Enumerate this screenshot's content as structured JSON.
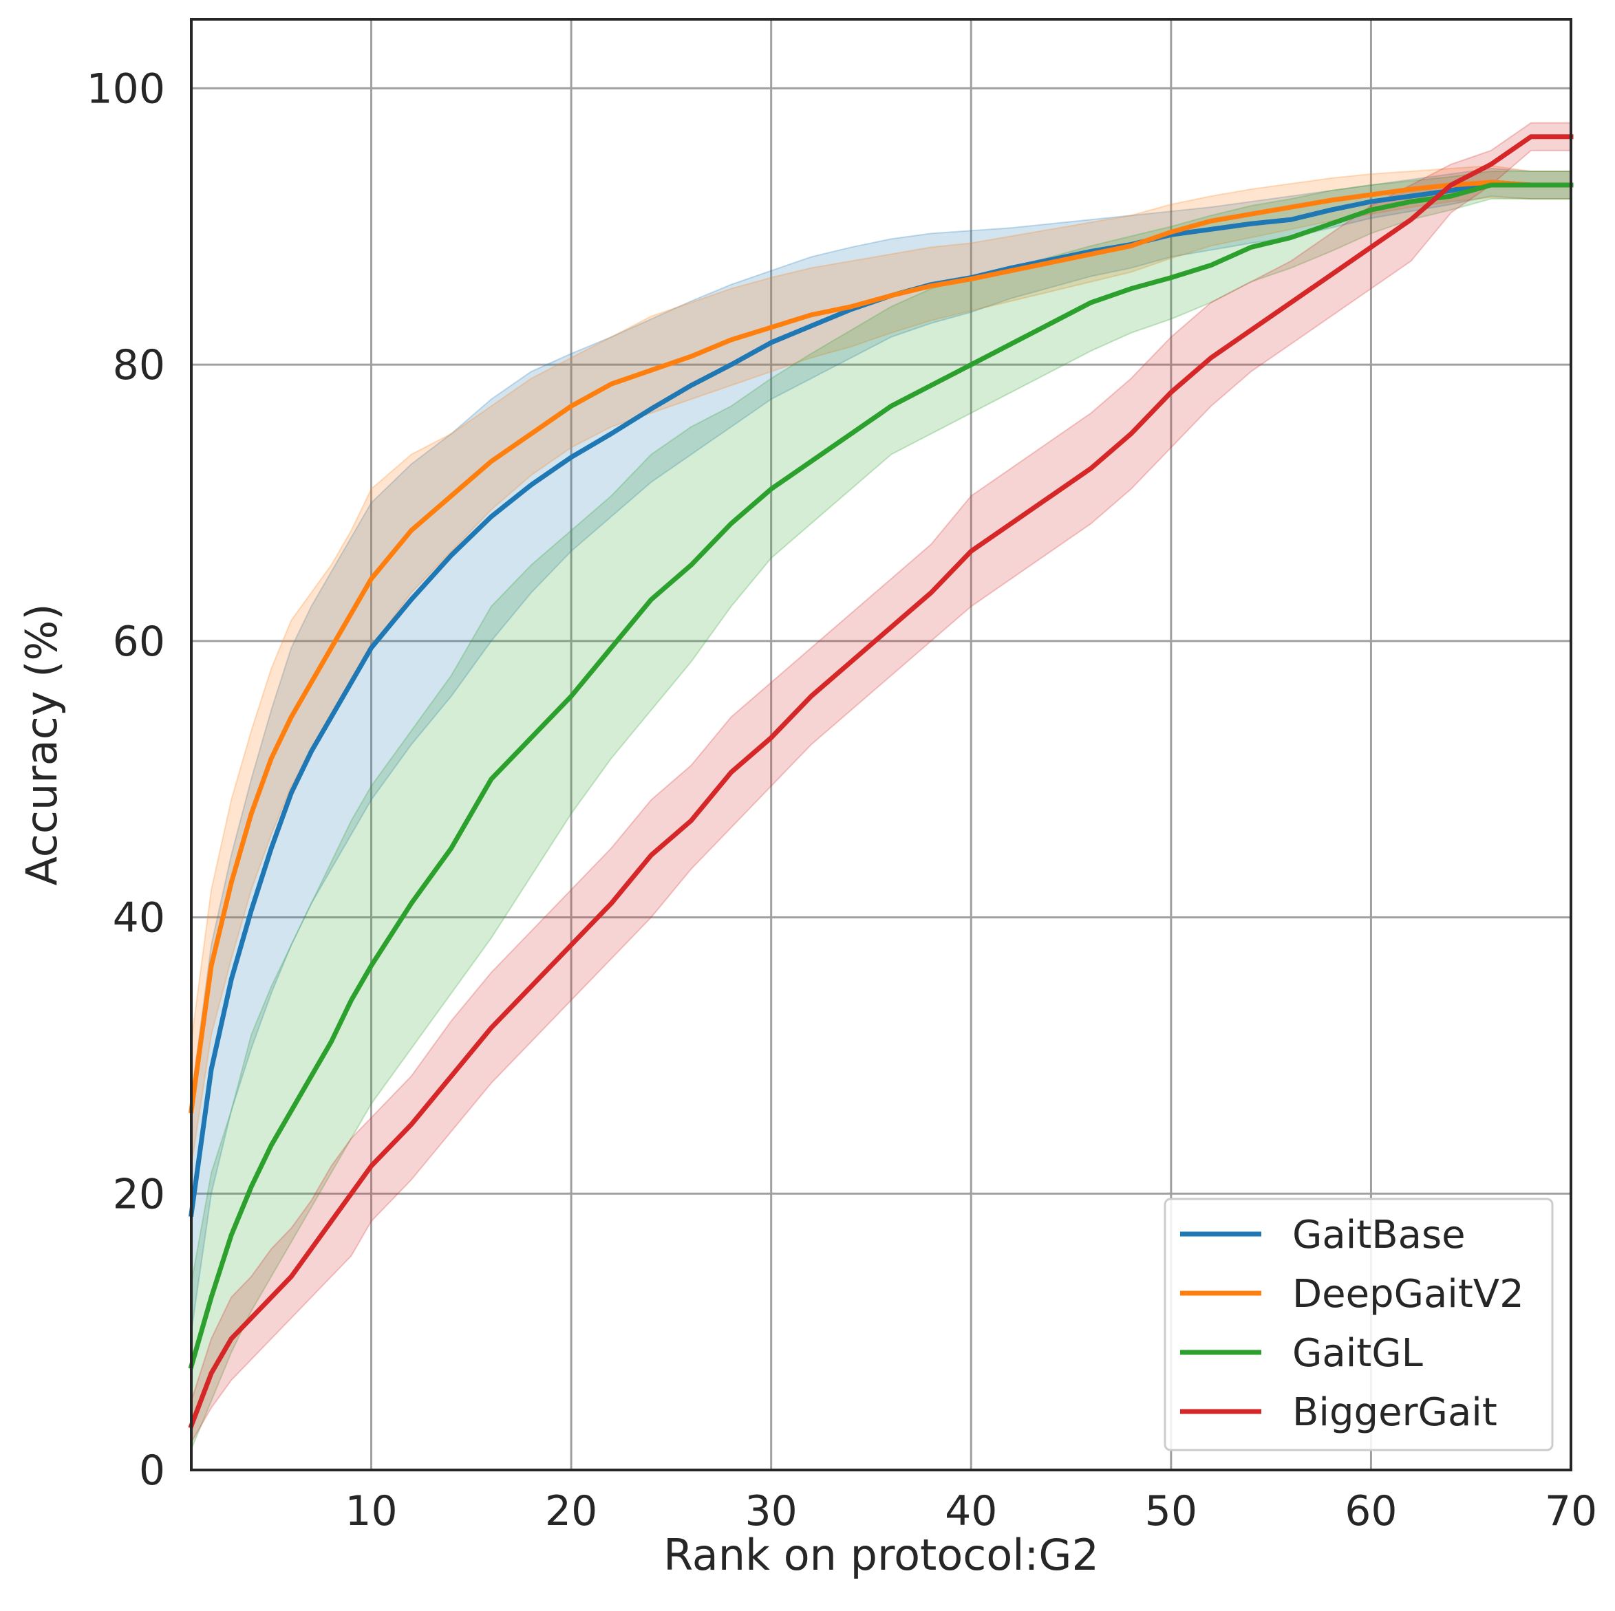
{
  "chart_data": {
    "type": "line",
    "title": "",
    "xlabel": "Rank on protocol:G2",
    "ylabel": "Accuracy (%)",
    "xlim": [
      1,
      70
    ],
    "ylim": [
      0,
      105
    ],
    "xticks": [
      10,
      20,
      30,
      40,
      50,
      60,
      70
    ],
    "yticks": [
      0,
      20,
      40,
      60,
      80,
      100
    ],
    "grid": true,
    "legend_position": "lower-right",
    "series": [
      {
        "name": "GaitBase",
        "color": "#1f77b4",
        "x": [
          1,
          2,
          3,
          4,
          5,
          6,
          7,
          8,
          9,
          10,
          12,
          14,
          16,
          18,
          20,
          22,
          24,
          26,
          28,
          30,
          32,
          34,
          36,
          38,
          40,
          42,
          44,
          46,
          48,
          50,
          52,
          54,
          56,
          58,
          60,
          62,
          64,
          66,
          68,
          70
        ],
        "y": [
          18.5,
          29,
          35.5,
          40.5,
          45,
          49,
          52,
          54.5,
          57,
          59.5,
          63,
          66.2,
          69,
          71.3,
          73.3,
          75,
          76.8,
          78.5,
          80,
          81.6,
          82.8,
          84,
          85,
          85.8,
          86.3,
          87,
          87.6,
          88.2,
          88.7,
          89.4,
          89.8,
          90.2,
          90.5,
          91.2,
          91.8,
          92.2,
          92.6,
          93.2,
          93,
          93
        ],
        "lower": [
          10,
          20,
          26,
          30.5,
          34.5,
          38,
          41,
          43.5,
          46,
          48.5,
          52.5,
          56,
          60,
          63.5,
          66.5,
          69,
          71.5,
          73.5,
          75.5,
          77.5,
          79,
          80.5,
          82,
          83,
          83.8,
          84.8,
          85.6,
          86.4,
          87,
          87.8,
          88.3,
          88.8,
          89.2,
          89.9,
          90.6,
          91.1,
          91.6,
          92.2,
          92,
          92
        ],
        "upper": [
          27,
          38,
          44.5,
          50,
          55,
          59.5,
          62.5,
          65,
          67.5,
          70,
          72.8,
          75,
          77.5,
          79.5,
          80.8,
          82,
          83.3,
          84.6,
          85.8,
          86.8,
          87.8,
          88.5,
          89.1,
          89.5,
          89.7,
          89.9,
          90.2,
          90.5,
          90.8,
          91.1,
          91.4,
          91.8,
          92.2,
          92.6,
          93,
          93.4,
          93.8,
          94.2,
          94,
          94
        ]
      },
      {
        "name": "DeepGaitV2",
        "color": "#ff7f0e",
        "x": [
          1,
          2,
          3,
          4,
          5,
          6,
          7,
          8,
          9,
          10,
          12,
          14,
          16,
          18,
          20,
          22,
          24,
          26,
          28,
          30,
          32,
          34,
          36,
          38,
          40,
          42,
          44,
          46,
          48,
          50,
          52,
          54,
          56,
          58,
          60,
          62,
          64,
          66,
          68,
          70
        ],
        "y": [
          26,
          36.5,
          42.5,
          47.5,
          51.5,
          54.5,
          57,
          59.5,
          62,
          64.5,
          68,
          70.5,
          73,
          75,
          77,
          78.6,
          79.6,
          80.6,
          81.8,
          82.7,
          83.6,
          84.2,
          85,
          85.7,
          86.2,
          86.8,
          87.4,
          88,
          88.6,
          89.6,
          90.4,
          90.9,
          91.4,
          91.9,
          92.3,
          92.7,
          93,
          93.2,
          93,
          93
        ],
        "lower": [
          22,
          31.5,
          37,
          42,
          46,
          49.5,
          52,
          54.5,
          57,
          59.5,
          63.5,
          66.5,
          69.5,
          72,
          74,
          75.5,
          76.5,
          77.5,
          78.5,
          79.5,
          80.5,
          81.3,
          82.3,
          83.2,
          83.9,
          84.6,
          85.3,
          86,
          86.7,
          87.7,
          88.6,
          89.2,
          89.8,
          90.4,
          90.9,
          91.4,
          91.8,
          92.1,
          92,
          92
        ],
        "upper": [
          31,
          42,
          48.5,
          53.5,
          58,
          61.5,
          63.5,
          65.5,
          68,
          71,
          73.5,
          75,
          77,
          79,
          80.5,
          82,
          83.5,
          84.5,
          85.5,
          86.3,
          87,
          87.5,
          88,
          88.5,
          88.8,
          89.3,
          89.8,
          90.3,
          90.8,
          91.6,
          92.2,
          92.7,
          93.1,
          93.5,
          93.8,
          94,
          94.2,
          94.4,
          94,
          94
        ]
      },
      {
        "name": "GaitGL",
        "color": "#2ca02c",
        "x": [
          1,
          2,
          3,
          4,
          5,
          6,
          7,
          8,
          9,
          10,
          12,
          14,
          16,
          18,
          20,
          22,
          24,
          26,
          28,
          30,
          32,
          34,
          36,
          38,
          40,
          42,
          44,
          46,
          48,
          50,
          52,
          54,
          56,
          58,
          60,
          62,
          64,
          66,
          68,
          70
        ],
        "y": [
          7.5,
          12.5,
          17,
          20.5,
          23.5,
          26,
          28.5,
          31,
          34,
          36.5,
          41,
          45,
          50,
          53,
          56,
          59.5,
          63,
          65.5,
          68.5,
          71,
          73,
          75,
          77,
          78.5,
          80,
          81.5,
          83,
          84.5,
          85.5,
          86.3,
          87.2,
          88.5,
          89.2,
          90.2,
          91.2,
          91.8,
          92.2,
          93,
          93,
          93
        ],
        "lower": [
          1.5,
          5,
          8.5,
          11.5,
          14,
          16.5,
          19,
          21.5,
          24,
          26.5,
          30.5,
          34.5,
          38.5,
          43,
          47.5,
          51.5,
          55,
          58.5,
          62.5,
          66,
          68.5,
          71,
          73.5,
          75,
          76.5,
          78,
          79.5,
          81,
          82.3,
          83.3,
          84.5,
          86,
          87,
          88.2,
          89.5,
          90.5,
          91.2,
          92,
          92,
          92
        ],
        "upper": [
          13.5,
          21.5,
          26,
          31.5,
          35,
          38,
          41,
          44,
          47,
          49.5,
          53.5,
          57.5,
          62.5,
          65.5,
          68,
          70.5,
          73.5,
          75.5,
          77,
          79,
          80.8,
          82.5,
          84.2,
          85.5,
          86.3,
          87,
          87.8,
          88.6,
          89.3,
          90,
          90.8,
          91.5,
          92,
          92.6,
          93,
          93.3,
          93.6,
          94,
          94,
          94
        ]
      },
      {
        "name": "BiggerGait",
        "color": "#d62728",
        "x": [
          1,
          2,
          3,
          4,
          5,
          6,
          7,
          8,
          9,
          10,
          12,
          14,
          16,
          18,
          20,
          22,
          24,
          26,
          28,
          30,
          32,
          34,
          36,
          38,
          40,
          42,
          44,
          46,
          48,
          50,
          52,
          54,
          56,
          58,
          60,
          62,
          64,
          66,
          68,
          70
        ],
        "y": [
          3.2,
          7,
          9.5,
          11,
          12.5,
          14,
          16,
          18,
          20,
          22,
          25,
          28.5,
          32,
          35,
          38,
          41,
          44.5,
          47,
          50.5,
          53,
          56,
          58.5,
          61,
          63.5,
          66.5,
          68.5,
          70.5,
          72.5,
          75,
          78,
          80.5,
          82.5,
          84.5,
          86.5,
          88.5,
          90.5,
          93,
          94.5,
          96.5,
          96.5
        ],
        "lower": [
          2,
          4.5,
          6.5,
          8,
          9.5,
          11,
          12.5,
          14,
          15.5,
          18,
          21,
          24.5,
          28,
          31,
          34,
          37,
          40,
          43.5,
          46.5,
          49.5,
          52.5,
          55,
          57.5,
          60,
          62.5,
          64.5,
          66.5,
          68.5,
          71,
          74,
          77,
          79.5,
          81.5,
          83.5,
          85.5,
          87.5,
          91,
          93,
          95.5,
          95.5
        ],
        "upper": [
          5,
          9.5,
          12.5,
          14,
          16,
          17.5,
          19.5,
          22,
          24,
          25.5,
          28.5,
          32.5,
          36,
          39,
          42,
          45,
          48.5,
          51,
          54.5,
          57,
          59.5,
          62,
          64.5,
          67,
          70.5,
          72.5,
          74.5,
          76.5,
          79,
          82,
          84.5,
          86,
          87.5,
          89.5,
          91.5,
          93,
          94.5,
          95.5,
          97.5,
          97.5
        ]
      }
    ]
  }
}
